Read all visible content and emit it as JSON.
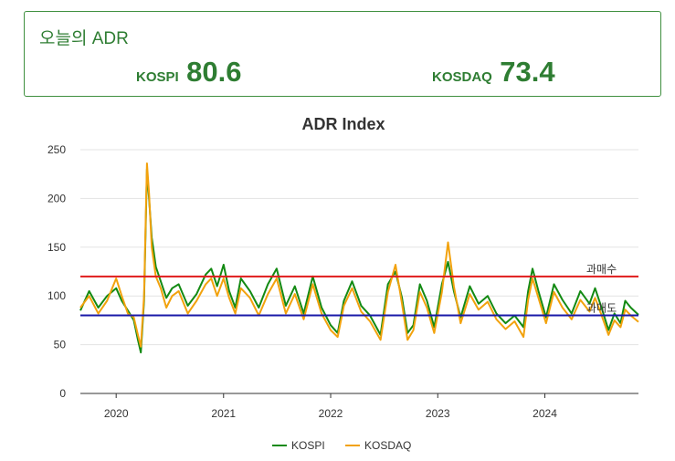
{
  "summary": {
    "title": "오늘의 ADR",
    "kospi_label": "KOSPI",
    "kospi_value": "80.6",
    "kosdaq_label": "KOSDAQ",
    "kosdaq_value": "73.4",
    "accent_color": "#2e7d32"
  },
  "chart_data": {
    "type": "line",
    "title": "ADR Index",
    "xlabel": "",
    "ylabel": "",
    "ylim": [
      0,
      250
    ],
    "yticks": [
      0,
      50,
      100,
      150,
      200,
      250
    ],
    "x_ticks": [
      "2020",
      "2021",
      "2022",
      "2023",
      "2024"
    ],
    "xlim": [
      "2019-09-01",
      "2024-11-15"
    ],
    "grid": true,
    "legend_position": "bottom",
    "series": [
      {
        "name": "KOSPI",
        "color": "#138a13",
        "points": [
          [
            "2019-09-01",
            85
          ],
          [
            "2019-10-01",
            105
          ],
          [
            "2019-11-01",
            88
          ],
          [
            "2019-12-01",
            100
          ],
          [
            "2020-01-01",
            108
          ],
          [
            "2020-01-20",
            95
          ],
          [
            "2020-02-10",
            85
          ],
          [
            "2020-03-01",
            75
          ],
          [
            "2020-03-15",
            55
          ],
          [
            "2020-03-25",
            42
          ],
          [
            "2020-04-05",
            95
          ],
          [
            "2020-04-15",
            230
          ],
          [
            "2020-04-22",
            200
          ],
          [
            "2020-05-01",
            160
          ],
          [
            "2020-05-15",
            130
          ],
          [
            "2020-06-01",
            115
          ],
          [
            "2020-06-20",
            98
          ],
          [
            "2020-07-10",
            108
          ],
          [
            "2020-08-01",
            112
          ],
          [
            "2020-09-01",
            90
          ],
          [
            "2020-10-01",
            102
          ],
          [
            "2020-11-01",
            122
          ],
          [
            "2020-11-20",
            128
          ],
          [
            "2020-12-10",
            110
          ],
          [
            "2021-01-01",
            132
          ],
          [
            "2021-01-20",
            105
          ],
          [
            "2021-02-10",
            88
          ],
          [
            "2021-03-01",
            118
          ],
          [
            "2021-04-01",
            105
          ],
          [
            "2021-05-01",
            88
          ],
          [
            "2021-06-01",
            112
          ],
          [
            "2021-07-01",
            128
          ],
          [
            "2021-08-01",
            90
          ],
          [
            "2021-09-01",
            110
          ],
          [
            "2021-10-01",
            82
          ],
          [
            "2021-11-01",
            120
          ],
          [
            "2021-12-01",
            88
          ],
          [
            "2022-01-01",
            70
          ],
          [
            "2022-01-25",
            62
          ],
          [
            "2022-02-15",
            95
          ],
          [
            "2022-03-15",
            115
          ],
          [
            "2022-04-15",
            90
          ],
          [
            "2022-05-15",
            80
          ],
          [
            "2022-06-20",
            60
          ],
          [
            "2022-07-15",
            112
          ],
          [
            "2022-08-10",
            125
          ],
          [
            "2022-09-01",
            98
          ],
          [
            "2022-09-20",
            62
          ],
          [
            "2022-10-10",
            70
          ],
          [
            "2022-11-01",
            112
          ],
          [
            "2022-11-25",
            95
          ],
          [
            "2022-12-20",
            68
          ],
          [
            "2023-01-15",
            112
          ],
          [
            "2023-02-05",
            135
          ],
          [
            "2023-02-25",
            105
          ],
          [
            "2023-03-20",
            78
          ],
          [
            "2023-04-20",
            110
          ],
          [
            "2023-05-20",
            92
          ],
          [
            "2023-06-20",
            100
          ],
          [
            "2023-07-20",
            82
          ],
          [
            "2023-08-20",
            72
          ],
          [
            "2023-09-20",
            80
          ],
          [
            "2023-10-20",
            68
          ],
          [
            "2023-11-05",
            105
          ],
          [
            "2023-11-20",
            128
          ],
          [
            "2023-12-10",
            105
          ],
          [
            "2024-01-05",
            78
          ],
          [
            "2024-02-01",
            112
          ],
          [
            "2024-03-01",
            96
          ],
          [
            "2024-04-01",
            82
          ],
          [
            "2024-05-01",
            105
          ],
          [
            "2024-06-01",
            92
          ],
          [
            "2024-06-20",
            108
          ],
          [
            "2024-07-10",
            90
          ],
          [
            "2024-08-05",
            65
          ],
          [
            "2024-08-25",
            82
          ],
          [
            "2024-09-15",
            72
          ],
          [
            "2024-10-01",
            95
          ],
          [
            "2024-10-20",
            88
          ],
          [
            "2024-11-15",
            80.6
          ]
        ]
      },
      {
        "name": "KOSDAQ",
        "color": "#f2a20d",
        "points": [
          [
            "2019-09-01",
            88
          ],
          [
            "2019-10-01",
            100
          ],
          [
            "2019-11-01",
            82
          ],
          [
            "2019-12-01",
            95
          ],
          [
            "2020-01-01",
            118
          ],
          [
            "2020-01-20",
            100
          ],
          [
            "2020-02-10",
            82
          ],
          [
            "2020-03-01",
            78
          ],
          [
            "2020-03-15",
            60
          ],
          [
            "2020-03-25",
            48
          ],
          [
            "2020-04-05",
            100
          ],
          [
            "2020-04-15",
            236
          ],
          [
            "2020-04-22",
            205
          ],
          [
            "2020-05-01",
            150
          ],
          [
            "2020-05-15",
            120
          ],
          [
            "2020-06-01",
            108
          ],
          [
            "2020-06-20",
            88
          ],
          [
            "2020-07-10",
            100
          ],
          [
            "2020-08-01",
            105
          ],
          [
            "2020-09-01",
            82
          ],
          [
            "2020-10-01",
            95
          ],
          [
            "2020-11-01",
            112
          ],
          [
            "2020-11-20",
            118
          ],
          [
            "2020-12-10",
            100
          ],
          [
            "2021-01-01",
            118
          ],
          [
            "2021-01-20",
            98
          ],
          [
            "2021-02-10",
            82
          ],
          [
            "2021-03-01",
            108
          ],
          [
            "2021-04-01",
            98
          ],
          [
            "2021-05-01",
            80
          ],
          [
            "2021-06-01",
            102
          ],
          [
            "2021-07-01",
            118
          ],
          [
            "2021-08-01",
            82
          ],
          [
            "2021-09-01",
            102
          ],
          [
            "2021-10-01",
            76
          ],
          [
            "2021-11-01",
            112
          ],
          [
            "2021-12-01",
            82
          ],
          [
            "2022-01-01",
            65
          ],
          [
            "2022-01-25",
            58
          ],
          [
            "2022-02-15",
            90
          ],
          [
            "2022-03-15",
            108
          ],
          [
            "2022-04-15",
            84
          ],
          [
            "2022-05-15",
            74
          ],
          [
            "2022-06-20",
            55
          ],
          [
            "2022-07-15",
            104
          ],
          [
            "2022-08-10",
            132
          ],
          [
            "2022-09-01",
            92
          ],
          [
            "2022-09-20",
            55
          ],
          [
            "2022-10-10",
            65
          ],
          [
            "2022-11-01",
            104
          ],
          [
            "2022-11-25",
            88
          ],
          [
            "2022-12-20",
            62
          ],
          [
            "2023-01-15",
            104
          ],
          [
            "2023-02-05",
            155
          ],
          [
            "2023-02-25",
            110
          ],
          [
            "2023-03-20",
            72
          ],
          [
            "2023-04-20",
            102
          ],
          [
            "2023-05-20",
            86
          ],
          [
            "2023-06-20",
            94
          ],
          [
            "2023-07-20",
            76
          ],
          [
            "2023-08-20",
            66
          ],
          [
            "2023-09-20",
            74
          ],
          [
            "2023-10-20",
            58
          ],
          [
            "2023-11-05",
            96
          ],
          [
            "2023-11-20",
            118
          ],
          [
            "2023-12-10",
            98
          ],
          [
            "2024-01-05",
            72
          ],
          [
            "2024-02-01",
            104
          ],
          [
            "2024-03-01",
            88
          ],
          [
            "2024-04-01",
            76
          ],
          [
            "2024-05-01",
            96
          ],
          [
            "2024-06-01",
            84
          ],
          [
            "2024-06-20",
            98
          ],
          [
            "2024-07-10",
            82
          ],
          [
            "2024-08-05",
            60
          ],
          [
            "2024-08-25",
            75
          ],
          [
            "2024-09-15",
            68
          ],
          [
            "2024-10-01",
            86
          ],
          [
            "2024-10-20",
            80
          ],
          [
            "2024-11-15",
            73.4
          ]
        ]
      }
    ],
    "reference_lines": [
      {
        "y": 120,
        "label": "과매수",
        "color": "#e01b1b"
      },
      {
        "y": 80,
        "label": "과매도",
        "color": "#1a1aa8"
      }
    ]
  }
}
